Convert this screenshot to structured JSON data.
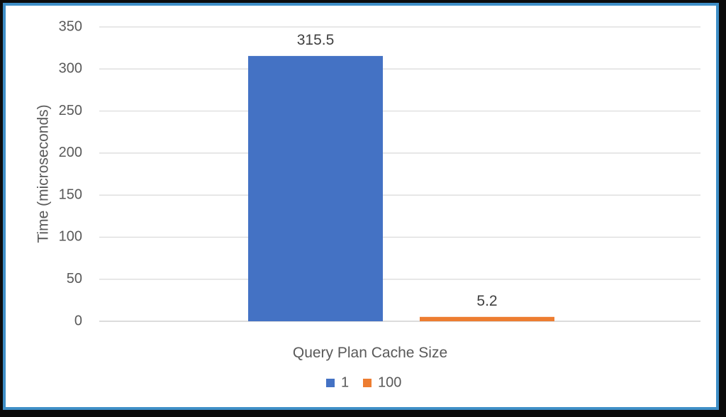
{
  "chart_data": {
    "type": "bar",
    "categories": [
      ""
    ],
    "series": [
      {
        "name": "1",
        "values": [
          315.5
        ],
        "color": "#4472c4"
      },
      {
        "name": "100",
        "values": [
          5.2
        ],
        "color": "#ed7d31"
      }
    ],
    "data_labels": [
      "315.5",
      "5.2"
    ],
    "title": "",
    "xlabel": "Query Plan Cache Size",
    "ylabel": "Time (microseconds)",
    "ylim": [
      0,
      350
    ],
    "yticks": [
      0,
      50,
      100,
      150,
      200,
      250,
      300,
      350
    ],
    "grid": true,
    "legend_position": "bottom"
  }
}
